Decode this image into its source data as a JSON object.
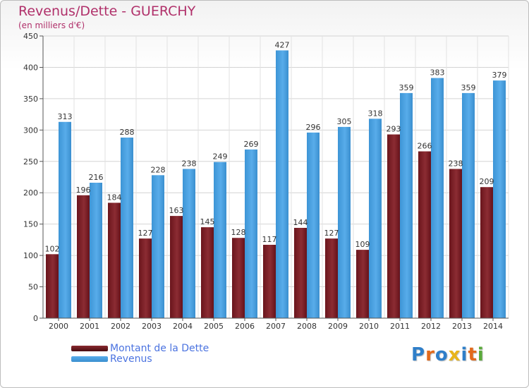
{
  "title": "Revenus/Dette - GUERCHY",
  "subtitle": "(en milliers d'€)",
  "colors": {
    "dette": "#7a1d24",
    "revenus": "#3e9ad8",
    "title": "#b0306a",
    "legend_text": "#4b73e0"
  },
  "legend": [
    {
      "label": "Montant de la Dette",
      "color": "dette"
    },
    {
      "label": "Revenus",
      "color": "revenus"
    }
  ],
  "logo": {
    "letters": [
      "P",
      "r",
      "o",
      "x",
      "i",
      "t",
      "i"
    ],
    "colors": [
      "#2f7fc9",
      "#e26a1c",
      "#2f7fc9",
      "#e8b41a",
      "#2f7fc9",
      "#e26a1c",
      "#5aaa3a"
    ]
  },
  "chart_data": {
    "type": "bar",
    "categories": [
      "2000",
      "2001",
      "2002",
      "2003",
      "2004",
      "2005",
      "2006",
      "2007",
      "2008",
      "2009",
      "2010",
      "2011",
      "2012",
      "2013",
      "2014"
    ],
    "series": [
      {
        "name": "Montant de la Dette",
        "values": [
          102,
          196,
          184,
          127,
          163,
          145,
          128,
          117,
          144,
          127,
          109,
          293,
          266,
          238,
          209
        ]
      },
      {
        "name": "Revenus",
        "values": [
          313,
          216,
          288,
          228,
          238,
          249,
          269,
          427,
          296,
          305,
          318,
          359,
          383,
          359,
          379
        ]
      }
    ],
    "ylim": [
      0,
      450
    ],
    "yticks": [
      0,
      50,
      100,
      150,
      200,
      250,
      300,
      350,
      400,
      450
    ],
    "grid": true
  }
}
